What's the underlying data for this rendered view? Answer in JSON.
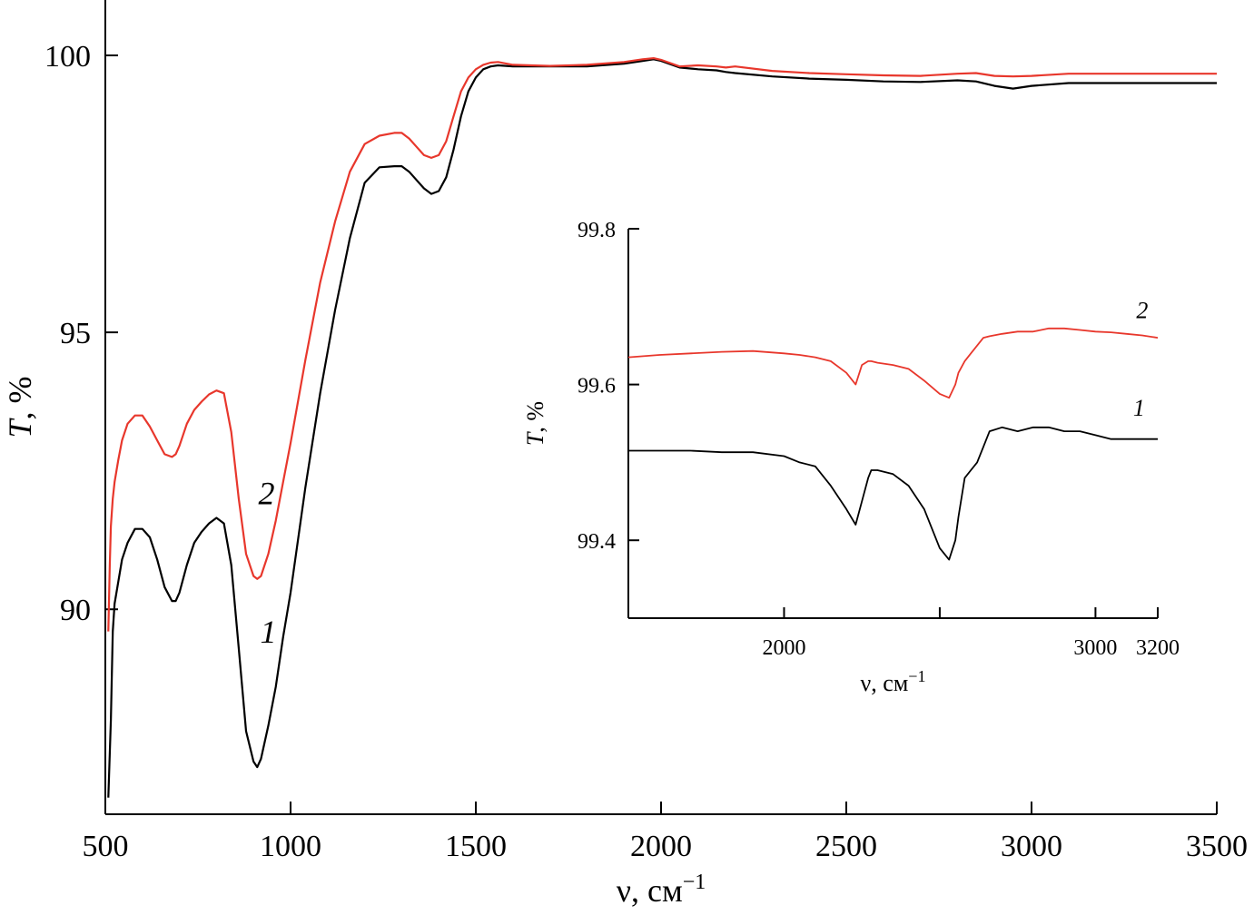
{
  "chart_data": [
    {
      "type": "line",
      "xlabel": "ν, см",
      "xlabel_sup": "−1",
      "ylabel_var": "T",
      "ylabel_unit": ", %",
      "xlim": [
        500,
        3500
      ],
      "ylim": [
        86.3,
        101
      ],
      "xticks": [
        500,
        1000,
        1500,
        2000,
        2500,
        3000,
        3500
      ],
      "xtick_labels": [
        "500",
        "1000",
        "1500",
        "2000",
        "2500",
        "3000",
        "3500"
      ],
      "yticks": [
        90,
        95,
        100
      ],
      "ytick_labels": [
        "90",
        "95",
        "100"
      ],
      "grid": false,
      "legend": "none",
      "series": [
        {
          "name": "1",
          "color": "#000000",
          "x": [
            508,
            512,
            515,
            520,
            525,
            535,
            545,
            560,
            580,
            600,
            620,
            640,
            660,
            680,
            690,
            700,
            720,
            740,
            760,
            780,
            800,
            820,
            840,
            860,
            880,
            900,
            910,
            920,
            940,
            960,
            980,
            1000,
            1040,
            1080,
            1120,
            1160,
            1200,
            1240,
            1280,
            1300,
            1320,
            1340,
            1360,
            1380,
            1400,
            1420,
            1440,
            1460,
            1480,
            1500,
            1520,
            1540,
            1560,
            1600,
            1700,
            1800,
            1900,
            1950,
            1980,
            2000,
            2050,
            2100,
            2150,
            2175,
            2200,
            2300,
            2400,
            2500,
            2600,
            2700,
            2800,
            2850,
            2900,
            2950,
            3000,
            3100,
            3200,
            3300,
            3400,
            3500
          ],
          "y": [
            86.6,
            87.4,
            88.0,
            89.6,
            90.1,
            90.5,
            90.9,
            91.2,
            91.45,
            91.45,
            91.3,
            90.9,
            90.4,
            90.15,
            90.15,
            90.3,
            90.8,
            91.2,
            91.4,
            91.55,
            91.65,
            91.55,
            90.8,
            89.3,
            87.8,
            87.25,
            87.15,
            87.3,
            87.9,
            88.6,
            89.5,
            90.3,
            92.2,
            93.9,
            95.4,
            96.7,
            97.7,
            97.98,
            98.0,
            98.0,
            97.9,
            97.75,
            97.6,
            97.5,
            97.55,
            97.8,
            98.3,
            98.9,
            99.35,
            99.6,
            99.75,
            99.8,
            99.82,
            99.8,
            99.8,
            99.8,
            99.85,
            99.9,
            99.93,
            99.9,
            99.78,
            99.75,
            99.73,
            99.7,
            99.68,
            99.62,
            99.58,
            99.56,
            99.53,
            99.52,
            99.55,
            99.53,
            99.45,
            99.4,
            99.45,
            99.5,
            99.5,
            99.5,
            99.5,
            99.5
          ]
        },
        {
          "name": "2",
          "color": "#e8372c",
          "x": [
            508,
            512,
            515,
            520,
            525,
            535,
            545,
            560,
            580,
            600,
            620,
            640,
            660,
            680,
            690,
            700,
            720,
            740,
            760,
            780,
            800,
            820,
            840,
            860,
            880,
            900,
            910,
            920,
            940,
            960,
            980,
            1000,
            1040,
            1080,
            1120,
            1160,
            1200,
            1240,
            1280,
            1300,
            1320,
            1340,
            1360,
            1380,
            1400,
            1420,
            1440,
            1460,
            1480,
            1500,
            1520,
            1540,
            1560,
            1600,
            1700,
            1800,
            1900,
            1950,
            1980,
            2000,
            2050,
            2100,
            2150,
            2175,
            2200,
            2300,
            2400,
            2500,
            2600,
            2700,
            2800,
            2850,
            2900,
            2950,
            3000,
            3100,
            3200,
            3300,
            3400,
            3500
          ],
          "y": [
            89.6,
            90.8,
            91.5,
            92.0,
            92.3,
            92.7,
            93.05,
            93.35,
            93.5,
            93.5,
            93.3,
            93.05,
            92.8,
            92.75,
            92.8,
            92.95,
            93.35,
            93.6,
            93.75,
            93.88,
            93.95,
            93.9,
            93.2,
            92.0,
            91.0,
            90.6,
            90.55,
            90.6,
            91.0,
            91.6,
            92.3,
            93.0,
            94.5,
            95.9,
            97.0,
            97.9,
            98.4,
            98.55,
            98.6,
            98.6,
            98.5,
            98.35,
            98.2,
            98.15,
            98.2,
            98.45,
            98.9,
            99.35,
            99.6,
            99.75,
            99.83,
            99.87,
            99.88,
            99.83,
            99.81,
            99.83,
            99.88,
            99.93,
            99.95,
            99.92,
            99.8,
            99.82,
            99.8,
            99.78,
            99.8,
            99.72,
            99.68,
            99.66,
            99.64,
            99.63,
            99.67,
            99.68,
            99.63,
            99.62,
            99.63,
            99.67,
            99.67,
            99.67,
            99.67,
            99.67
          ]
        }
      ],
      "series_labels": [
        {
          "text": "1",
          "x": 940,
          "y": 89.4
        },
        {
          "text": "2",
          "x": 935,
          "y": 91.9
        }
      ]
    },
    {
      "type": "line",
      "inset": true,
      "xlabel": "ν, см",
      "xlabel_sup": "−1",
      "ylabel_var": "T",
      "ylabel_unit": ", %",
      "xlim": [
        1500,
        3200
      ],
      "ylim": [
        99.3,
        99.8
      ],
      "xticks": [
        2000,
        3000,
        3200
      ],
      "xtick_labels": [
        "2000",
        "3000",
        "3200"
      ],
      "minor_xticks": [
        2500
      ],
      "yticks": [
        99.4,
        99.6,
        99.8
      ],
      "ytick_labels": [
        "99.4",
        "99.6",
        "99.8"
      ],
      "grid": false,
      "legend": "none",
      "series": [
        {
          "name": "1",
          "color": "#000000",
          "x": [
            1500,
            1600,
            1700,
            1800,
            1900,
            2000,
            2050,
            2100,
            2150,
            2200,
            2230,
            2250,
            2270,
            2280,
            2300,
            2350,
            2400,
            2450,
            2500,
            2530,
            2550,
            2560,
            2580,
            2600,
            2620,
            2640,
            2660,
            2700,
            2750,
            2800,
            2850,
            2900,
            2950,
            3000,
            3050,
            3100,
            3150,
            3200
          ],
          "y": [
            99.515,
            99.515,
            99.515,
            99.513,
            99.513,
            99.508,
            99.5,
            99.495,
            99.47,
            99.44,
            99.42,
            99.45,
            99.48,
            99.49,
            99.49,
            99.485,
            99.47,
            99.44,
            99.39,
            99.375,
            99.4,
            99.43,
            99.48,
            99.49,
            99.5,
            99.52,
            99.54,
            99.545,
            99.54,
            99.545,
            99.545,
            99.54,
            99.54,
            99.535,
            99.53,
            99.53,
            99.53,
            99.53
          ]
        },
        {
          "name": "2",
          "color": "#e8372c",
          "x": [
            1500,
            1600,
            1700,
            1800,
            1900,
            2000,
            2050,
            2100,
            2150,
            2200,
            2230,
            2250,
            2270,
            2280,
            2300,
            2350,
            2400,
            2450,
            2500,
            2530,
            2550,
            2560,
            2580,
            2600,
            2620,
            2640,
            2660,
            2700,
            2750,
            2800,
            2850,
            2900,
            2950,
            3000,
            3050,
            3100,
            3150,
            3200
          ],
          "y": [
            99.635,
            99.638,
            99.64,
            99.642,
            99.643,
            99.64,
            99.638,
            99.635,
            99.63,
            99.615,
            99.6,
            99.625,
            99.63,
            99.63,
            99.628,
            99.625,
            99.62,
            99.605,
            99.588,
            99.583,
            99.6,
            99.615,
            99.63,
            99.64,
            99.65,
            99.66,
            99.662,
            99.665,
            99.668,
            99.668,
            99.672,
            99.672,
            99.67,
            99.668,
            99.667,
            99.665,
            99.663,
            99.66
          ]
        }
      ],
      "series_labels": [
        {
          "text": "2",
          "x": 3150,
          "y": 99.685
        },
        {
          "text": "1",
          "x": 3140,
          "y": 99.56
        }
      ]
    }
  ]
}
